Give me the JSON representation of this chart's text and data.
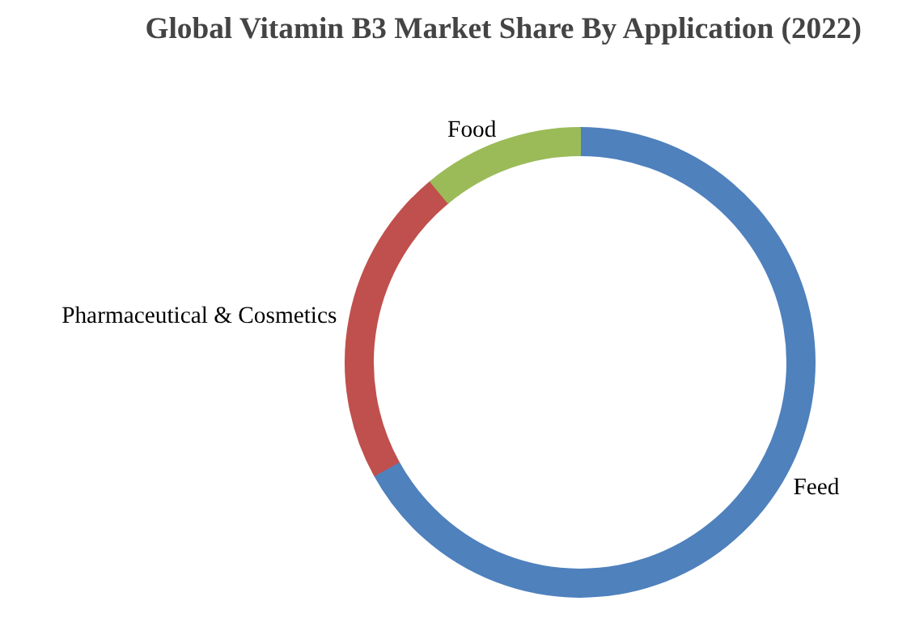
{
  "chart_data": {
    "type": "donut",
    "title": "Global Vitamin  B3 Market Share By Application (2022)",
    "categories": [
      "Feed",
      "Pharmaceutical & Cosmetics",
      "Food"
    ],
    "values": [
      67,
      22,
      11
    ],
    "colors": [
      "#4f81bd",
      "#c0504d",
      "#9bbb59"
    ]
  }
}
